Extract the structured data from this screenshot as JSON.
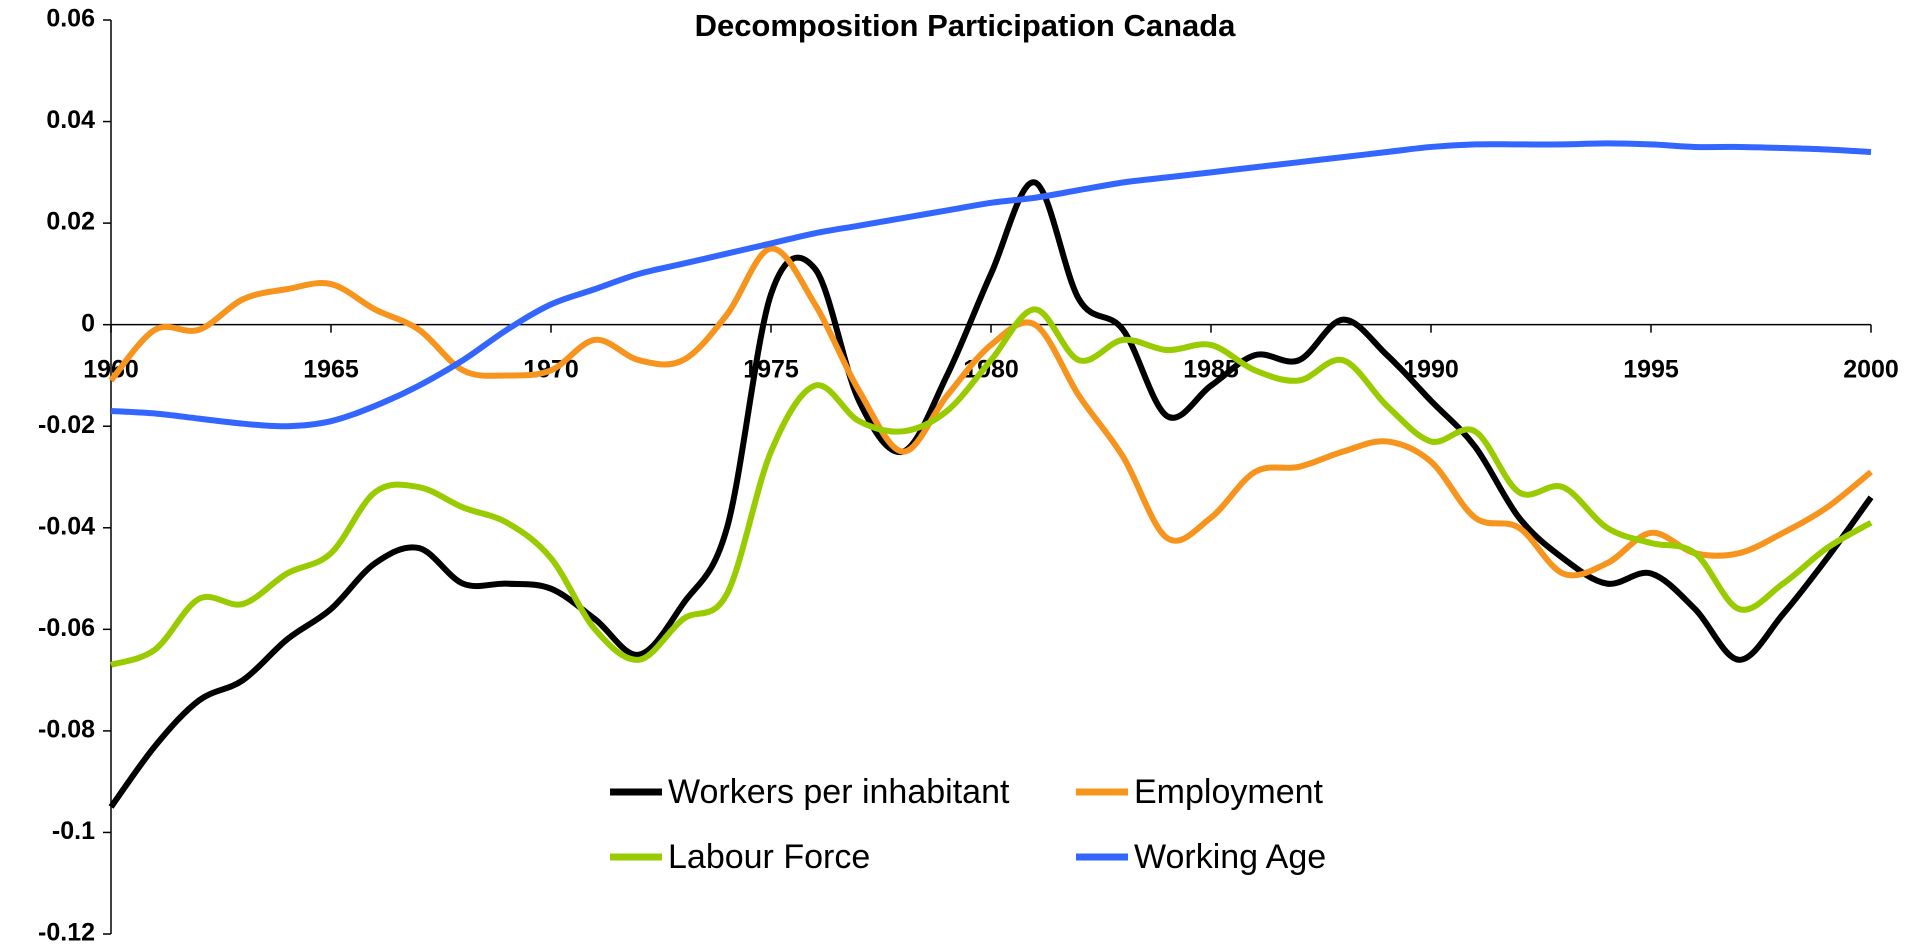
{
  "chart_data": {
    "type": "line",
    "title": "Decomposition Participation Canada",
    "x": [
      1960,
      1961,
      1962,
      1963,
      1964,
      1965,
      1966,
      1967,
      1968,
      1969,
      1970,
      1971,
      1972,
      1973,
      1974,
      1975,
      1976,
      1977,
      1978,
      1979,
      1980,
      1981,
      1982,
      1983,
      1984,
      1985,
      1986,
      1987,
      1988,
      1989,
      1990,
      1991,
      1992,
      1993,
      1994,
      1995,
      1996,
      1997,
      1998,
      1999,
      2000
    ],
    "xlim": [
      1960,
      2000
    ],
    "xticks": [
      1960,
      1965,
      1970,
      1975,
      1980,
      1985,
      1990,
      1995,
      2000
    ],
    "ylim": [
      -0.12,
      0.06
    ],
    "yticks": [
      -0.12,
      -0.1,
      -0.08,
      -0.06,
      -0.04,
      -0.02,
      0,
      0.02,
      0.04,
      0.06
    ],
    "series": [
      {
        "name": "Workers per inhabitant",
        "color": "#000000",
        "values": [
          -0.095,
          -0.083,
          -0.074,
          -0.07,
          -0.062,
          -0.056,
          -0.047,
          -0.044,
          -0.051,
          -0.051,
          -0.052,
          -0.058,
          -0.065,
          -0.055,
          -0.04,
          0.006,
          0.011,
          -0.015,
          -0.025,
          -0.01,
          0.01,
          0.028,
          0.005,
          -0.001,
          -0.018,
          -0.012,
          -0.006,
          -0.007,
          0.001,
          -0.006,
          -0.015,
          -0.024,
          -0.038,
          -0.046,
          -0.051,
          -0.049,
          -0.056,
          -0.066,
          -0.057,
          -0.046,
          -0.034
        ]
      },
      {
        "name": "Employment",
        "color": "#f7941d",
        "values": [
          -0.011,
          -0.001,
          -0.001,
          0.005,
          0.007,
          0.008,
          0.003,
          -0.001,
          -0.009,
          -0.01,
          -0.009,
          -0.003,
          -0.007,
          -0.007,
          0.002,
          0.015,
          0.004,
          -0.013,
          -0.025,
          -0.014,
          -0.004,
          0.0,
          -0.014,
          -0.026,
          -0.042,
          -0.038,
          -0.029,
          -0.028,
          -0.025,
          -0.023,
          -0.027,
          -0.038,
          -0.04,
          -0.049,
          -0.047,
          -0.041,
          -0.045,
          -0.045,
          -0.041,
          -0.036,
          -0.029
        ]
      },
      {
        "name": "Labour Force",
        "color": "#99cc00",
        "values": [
          -0.067,
          -0.064,
          -0.054,
          -0.055,
          -0.049,
          -0.045,
          -0.033,
          -0.032,
          -0.036,
          -0.039,
          -0.046,
          -0.06,
          -0.066,
          -0.058,
          -0.053,
          -0.025,
          -0.012,
          -0.019,
          -0.021,
          -0.017,
          -0.007,
          0.003,
          -0.007,
          -0.003,
          -0.005,
          -0.004,
          -0.009,
          -0.011,
          -0.007,
          -0.016,
          -0.023,
          -0.021,
          -0.033,
          -0.032,
          -0.04,
          -0.043,
          -0.045,
          -0.056,
          -0.051,
          -0.044,
          -0.039
        ]
      },
      {
        "name": "Working Age",
        "color": "#3366ff",
        "values": [
          -0.017,
          -0.0175,
          -0.0185,
          -0.0195,
          -0.02,
          -0.019,
          -0.016,
          -0.012,
          -0.007,
          -0.001,
          0.004,
          0.007,
          0.01,
          0.012,
          0.014,
          0.016,
          0.018,
          0.0195,
          0.021,
          0.0225,
          0.024,
          0.025,
          0.0265,
          0.028,
          0.029,
          0.03,
          0.031,
          0.032,
          0.033,
          0.034,
          0.035,
          0.0355,
          0.0355,
          0.0355,
          0.0357,
          0.0355,
          0.035,
          0.035,
          0.0348,
          0.0345,
          0.034
        ]
      }
    ]
  }
}
